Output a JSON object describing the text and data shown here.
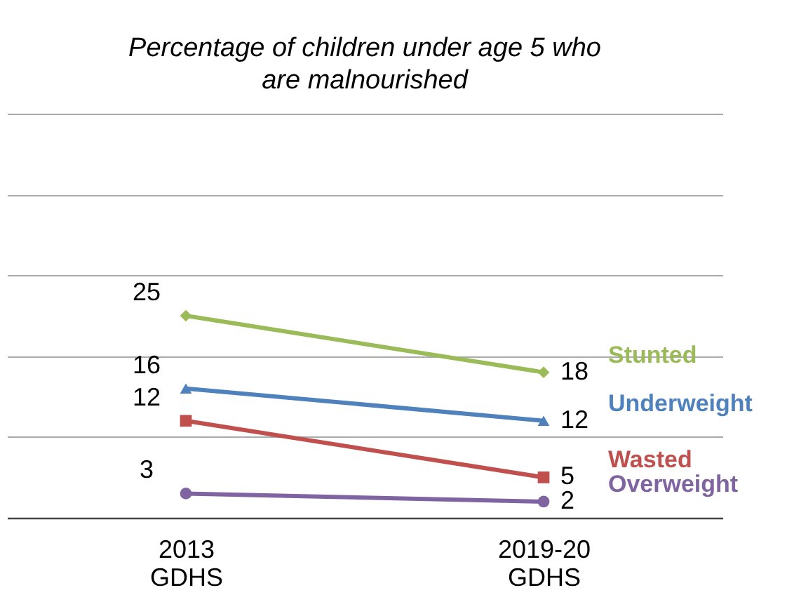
{
  "chart_data": {
    "type": "line",
    "title": "Percentage of children under age 5 who are malnourished",
    "categories": [
      "2013 GDHS",
      "2019-20 GDHS"
    ],
    "ylim": [
      0,
      50
    ],
    "yticks": [
      {
        "value": 0,
        "label": null
      },
      {
        "value": 10,
        "label": null
      },
      {
        "value": 20,
        "label": null
      },
      {
        "value": 30,
        "label": null
      },
      {
        "value": 40,
        "label": null
      },
      {
        "value": 50,
        "label": null
      }
    ],
    "grid": "y",
    "tick_labels": "x",
    "data_labels": true,
    "line_style": "solid",
    "series": [
      {
        "name": "Stunted",
        "color": "#9bbb59",
        "marker": "diamond",
        "values": [
          25,
          18
        ]
      },
      {
        "name": "Underweight",
        "color": "#4f81bd",
        "marker": "triangle",
        "values": [
          16,
          12
        ]
      },
      {
        "name": "Wasted",
        "color": "#c0504d",
        "marker": "square",
        "values": [
          12,
          5
        ]
      },
      {
        "name": "Overweight",
        "color": "#8064a2",
        "marker": "circle",
        "values": [
          3,
          2
        ]
      }
    ]
  }
}
